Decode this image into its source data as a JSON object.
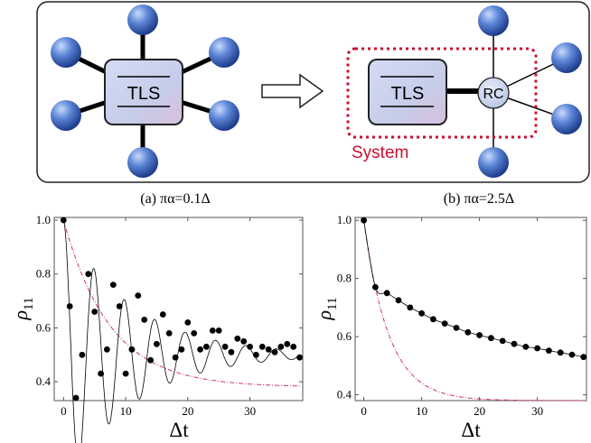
{
  "schematic": {
    "tls_label": "TLS",
    "rc_label": "RC",
    "system_label": "System"
  },
  "colors": {
    "system_box": "#c8102e",
    "tls_fill": "#c9d0ea",
    "bath_sphere": "#4a72c8",
    "exact_curve": "#000000",
    "approx_curve": "#d0306a"
  },
  "chart_data": [
    {
      "type": "line",
      "title": "(a) πα=0.1Δ",
      "xlabel": "Δt",
      "ylabel": "ρ11",
      "xlim": [
        -1.5,
        38.5
      ],
      "ylim": [
        0.33,
        1.01
      ],
      "xticks": [
        0,
        10,
        20,
        30
      ],
      "yticks": [
        0.4,
        0.6,
        0.8,
        1.0
      ],
      "ytick_labels": [
        "0.4",
        "0.6",
        "0.8",
        "1.0"
      ],
      "grid": false,
      "series": [
        {
          "style": "points",
          "x": [
            0,
            1,
            2,
            3,
            4,
            5,
            6,
            7,
            8,
            9,
            10,
            11,
            12,
            13,
            14,
            15,
            16,
            17,
            18,
            19,
            20,
            21,
            22,
            23,
            24,
            25,
            26,
            27,
            28,
            29,
            30,
            31,
            32,
            33,
            34,
            35,
            36,
            37,
            38
          ],
          "y": [
            1.0,
            0.68,
            0.34,
            0.5,
            0.8,
            0.66,
            0.43,
            0.52,
            0.76,
            0.68,
            0.43,
            0.52,
            0.72,
            0.63,
            0.48,
            0.54,
            0.65,
            0.58,
            0.49,
            0.52,
            0.62,
            0.58,
            0.52,
            0.53,
            0.59,
            0.59,
            0.53,
            0.51,
            0.56,
            0.55,
            0.53,
            0.5,
            0.53,
            0.52,
            0.51,
            0.53,
            0.54,
            0.53,
            0.49
          ]
        },
        {
          "style": "oscillation",
          "y_equilibrium": 0.5,
          "amplitude": 0.5,
          "decay_time": 11,
          "period": 4.9
        },
        {
          "style": "dashed",
          "y_start": 1.0,
          "y_end": 0.38,
          "decay_time": 7.5
        }
      ]
    },
    {
      "type": "line",
      "title": "(b) πα=2.5Δ",
      "xlabel": "Δt",
      "ylabel": "ρ11",
      "xlim": [
        -1.5,
        38.5
      ],
      "ylim": [
        0.38,
        1.01
      ],
      "xticks": [
        0,
        10,
        20,
        30
      ],
      "yticks": [
        0.4,
        0.6,
        0.8,
        1.0
      ],
      "ytick_labels": [
        "0.4",
        "0.6",
        "0.8",
        "1.0"
      ],
      "grid": false,
      "series": [
        {
          "style": "points",
          "x": [
            0,
            2,
            4,
            6,
            8,
            10,
            12,
            14,
            16,
            18,
            20,
            22,
            24,
            26,
            28,
            30,
            32,
            34,
            36,
            38
          ],
          "y": [
            1.0,
            0.77,
            0.75,
            0.725,
            0.7,
            0.68,
            0.66,
            0.645,
            0.63,
            0.615,
            0.605,
            0.595,
            0.585,
            0.575,
            0.565,
            0.56,
            0.552,
            0.545,
            0.538,
            0.53
          ]
        },
        {
          "style": "smooth"
        },
        {
          "style": "dashed",
          "y_start": 1.0,
          "y_end": 0.38,
          "decay_time": 4.3
        }
      ]
    }
  ]
}
